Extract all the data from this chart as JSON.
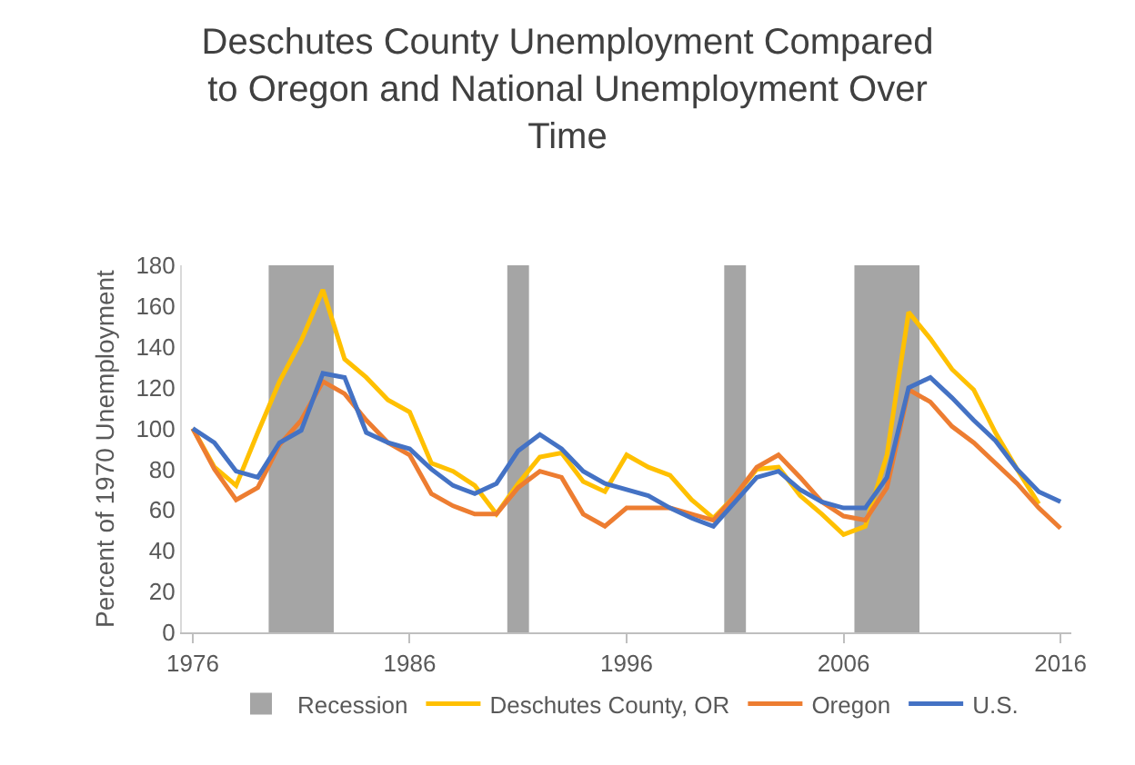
{
  "chart_data": {
    "type": "line",
    "title": "Deschutes County Unemployment Compared to Oregon and National Unemployment Over Time",
    "ylabel": "Percent of 1970 Unemployment",
    "x": [
      1976,
      1977,
      1978,
      1979,
      1980,
      1981,
      1982,
      1983,
      1984,
      1985,
      1986,
      1987,
      1988,
      1989,
      1990,
      1991,
      1992,
      1993,
      1994,
      1995,
      1996,
      1997,
      1998,
      1999,
      2000,
      2001,
      2002,
      2003,
      2004,
      2005,
      2006,
      2007,
      2008,
      2009,
      2010,
      2011,
      2012,
      2013,
      2014,
      2015,
      2016
    ],
    "series": [
      {
        "name": "Deschutes County, OR",
        "color": "#ffc000",
        "values": [
          100,
          81,
          72,
          98,
          123,
          143,
          168,
          134,
          125,
          114,
          108,
          83,
          79,
          72,
          58,
          73,
          86,
          88,
          74,
          69,
          87,
          81,
          77,
          65,
          56,
          67,
          80,
          81,
          67,
          58,
          48,
          52,
          87,
          157,
          144,
          129,
          119,
          98,
          80,
          63,
          null
        ]
      },
      {
        "name": "Oregon",
        "color": "#ed7d31",
        "values": [
          100,
          80,
          65,
          71,
          92,
          104,
          123,
          117,
          104,
          93,
          87,
          68,
          62,
          58,
          58,
          71,
          79,
          76,
          58,
          52,
          61,
          61,
          61,
          58,
          55,
          67,
          81,
          87,
          76,
          64,
          57,
          55,
          71,
          119,
          113,
          101,
          93,
          83,
          73,
          61,
          51
        ]
      },
      {
        "name": "U.S.",
        "color": "#4472c4",
        "values": [
          100,
          93,
          79,
          76,
          93,
          99,
          127,
          125,
          98,
          93,
          90,
          80,
          72,
          68,
          73,
          89,
          97,
          90,
          79,
          73,
          70,
          67,
          61,
          56,
          52,
          64,
          76,
          79,
          70,
          64,
          61,
          61,
          76,
          120,
          125,
          115,
          104,
          94,
          80,
          69,
          64
        ]
      }
    ],
    "bands": [
      {
        "axis": "x",
        "from": 1979.5,
        "to": 1982.5,
        "label": "Recession",
        "color": "#a5a5a5"
      },
      {
        "axis": "x",
        "from": 1990.5,
        "to": 1991.5,
        "color": "#a5a5a5"
      },
      {
        "axis": "x",
        "from": 2000.5,
        "to": 2001.5,
        "color": "#a5a5a5"
      },
      {
        "axis": "x",
        "from": 2006.5,
        "to": 2009.5,
        "color": "#a5a5a5"
      }
    ],
    "xlim": [
      1975.5,
      2016.5
    ],
    "xticks": [
      1976,
      1986,
      1996,
      2006,
      2016
    ],
    "ylim": [
      0,
      180
    ],
    "yticks": [
      0,
      20,
      40,
      60,
      80,
      100,
      120,
      140,
      160,
      180
    ],
    "grid": false,
    "legend": "bottom",
    "marker": "none",
    "line_style": "solid"
  }
}
